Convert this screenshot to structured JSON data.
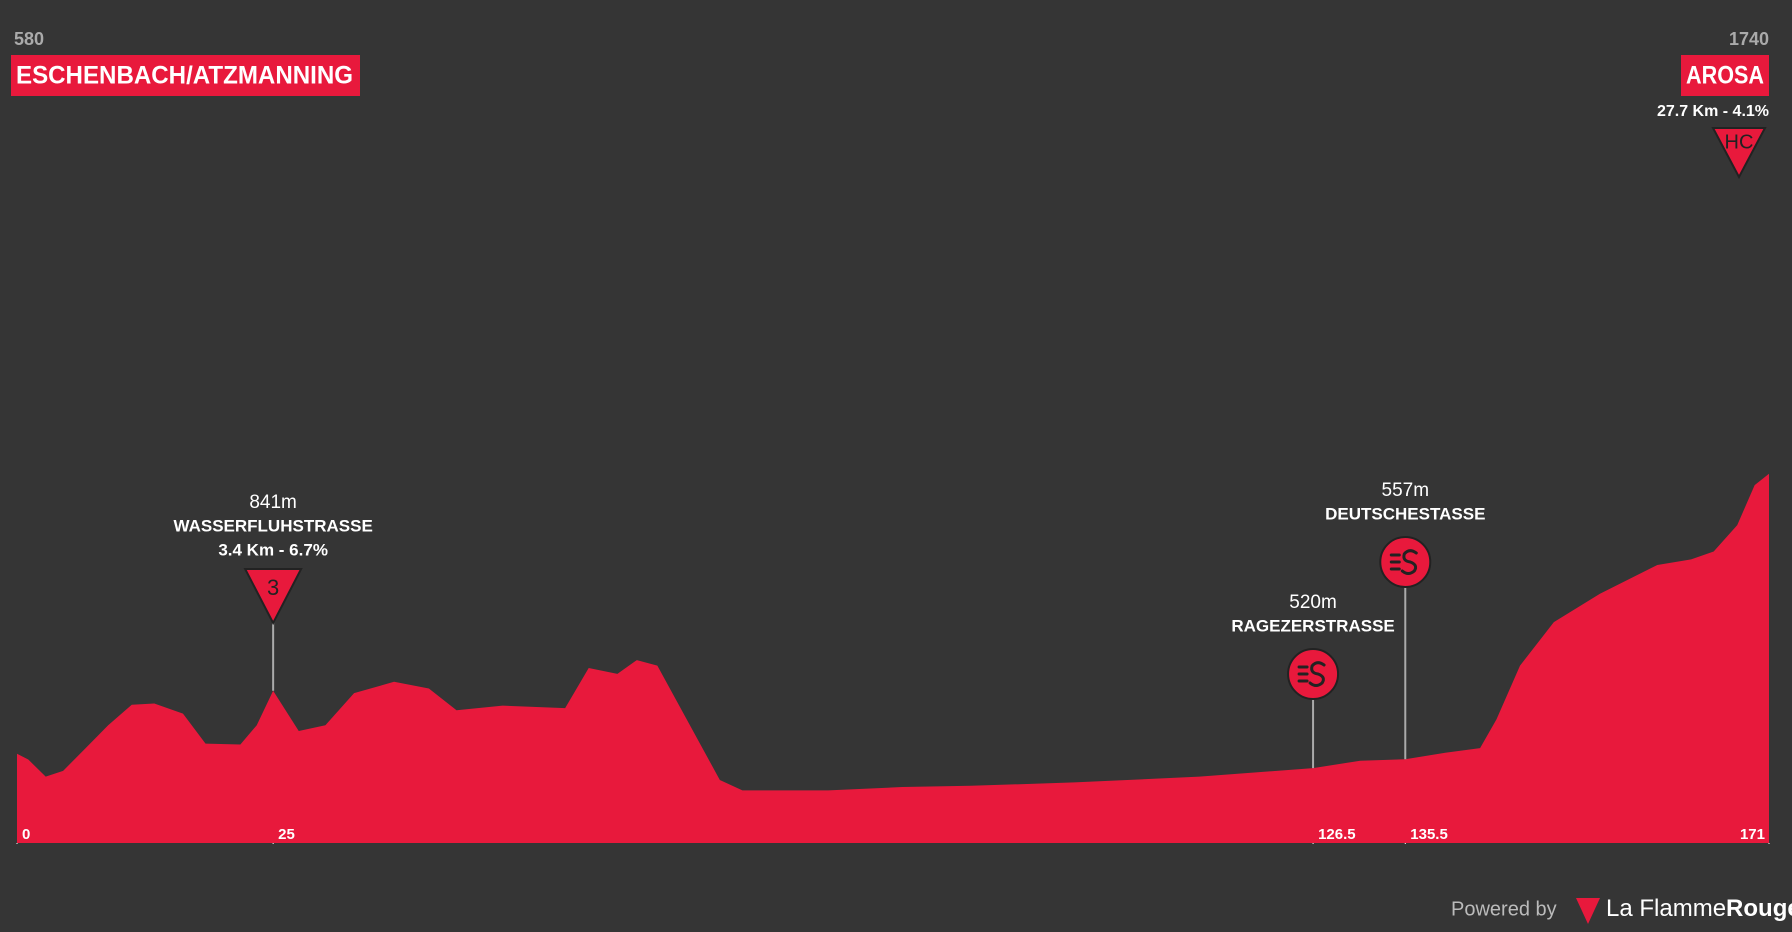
{
  "chart_data": {
    "type": "area",
    "x": [
      0,
      1.1,
      2.8,
      4.5,
      6.7,
      8.9,
      11.2,
      13.4,
      16.2,
      18.4,
      21.8,
      23.4,
      25,
      27.5,
      30.1,
      32.9,
      36.8,
      40.2,
      42.9,
      47.4,
      53.5,
      55.8,
      58.6,
      60.5,
      62.5,
      68.6,
      70.8,
      79.2,
      86.4,
      93.1,
      103.2,
      115.4,
      126.5,
      131.1,
      135.5,
      139.4,
      142.8,
      144.4,
      146.7,
      150,
      154.5,
      160.1,
      163.4,
      165.6,
      167.9,
      169.6,
      171
    ],
    "values": [
      580,
      556,
      485,
      509,
      603,
      698,
      783,
      788,
      746,
      622,
      618,
      698,
      841,
      674,
      698,
      831,
      878,
      850,
      760,
      779,
      769,
      935,
      911,
      968,
      945,
      471,
      428,
      428,
      442,
      447,
      461,
      485,
      520,
      551,
      557,
      584,
      603,
      722,
      945,
      1125,
      1243,
      1362,
      1385,
      1418,
      1527,
      1693,
      1740
    ],
    "color": "#e8193c",
    "xlim": [
      0,
      171
    ],
    "ylim": [
      210,
      2000
    ],
    "xticks": [
      0,
      25,
      126.5,
      135.5,
      171
    ],
    "start_label": {
      "altitude": "580",
      "name": "ESCHENBACH/ATZMANNING"
    },
    "finish_label": {
      "altitude": "1740",
      "name": "AROSA",
      "climb": "27.7 Km - 4.1%",
      "category": "HC"
    },
    "climbs": [
      {
        "km": 25,
        "altitude": "841m",
        "name": "WASSERFLUHSTRASSE",
        "detail": "3.4 Km - 6.7%",
        "category": "3"
      }
    ],
    "sprints": [
      {
        "km": 126.5,
        "altitude": "520m",
        "name": "RAGEZERSTRASSE"
      },
      {
        "km": 135.5,
        "altitude": "557m",
        "name": "DEUTSCHESTASSE"
      }
    ]
  },
  "footer": {
    "powered_by": "Powered by",
    "brand_light": "La Flamme",
    "brand_bold": "Rouge"
  }
}
